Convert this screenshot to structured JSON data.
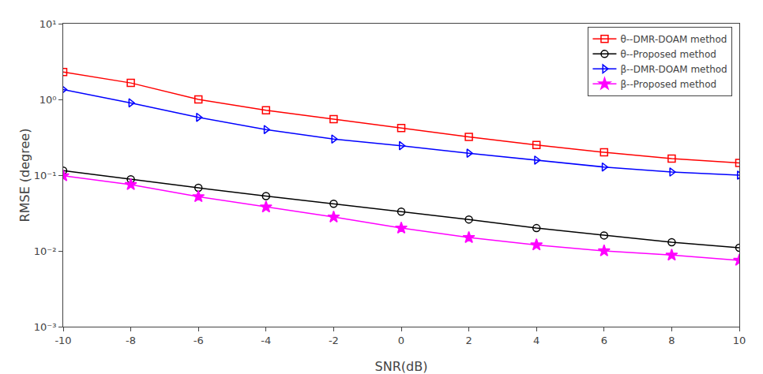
{
  "chart_data": {
    "type": "line",
    "x": [
      -10,
      -8,
      -6,
      -4,
      -2,
      0,
      2,
      4,
      6,
      8,
      10
    ],
    "series": [
      {
        "name": "θ--DMR-DOAM method",
        "color": "red",
        "marker": "square-open",
        "values": [
          2.3,
          1.65,
          1.0,
          0.72,
          0.55,
          0.42,
          0.32,
          0.25,
          0.2,
          0.165,
          0.145
        ]
      },
      {
        "name": "θ--Proposed method",
        "color": "black",
        "marker": "circle-open",
        "values": [
          0.115,
          0.088,
          0.068,
          0.053,
          0.042,
          0.033,
          0.026,
          0.02,
          0.016,
          0.013,
          0.011
        ]
      },
      {
        "name": "β--DMR-DOAM method",
        "color": "blue",
        "marker": "triangle-right-open",
        "values": [
          1.35,
          0.9,
          0.58,
          0.4,
          0.3,
          0.245,
          0.195,
          0.158,
          0.128,
          0.11,
          0.1
        ]
      },
      {
        "name": "β--Proposed method",
        "color": "magenta",
        "marker": "star",
        "values": [
          0.098,
          0.075,
          0.052,
          0.038,
          0.028,
          0.02,
          0.015,
          0.012,
          0.01,
          0.0088,
          0.0075
        ]
      }
    ],
    "xlabel": "SNR(dB)",
    "ylabel": "RMSE (degree)",
    "xlim": [
      -10,
      10
    ],
    "xticks": [
      -10,
      -8,
      -6,
      -4,
      -2,
      0,
      2,
      4,
      6,
      8,
      10
    ],
    "ylim": [
      0.001,
      10
    ],
    "yticks": [
      {
        "value": 0.001,
        "label": "10⁻³"
      },
      {
        "value": 0.01,
        "label": "10⁻²"
      },
      {
        "value": 0.1,
        "label": "10⁻¹"
      },
      {
        "value": 1,
        "label": "10⁰"
      },
      {
        "value": 10,
        "label": "10¹"
      }
    ],
    "log": "y",
    "grid": false,
    "legend": "upper right"
  }
}
